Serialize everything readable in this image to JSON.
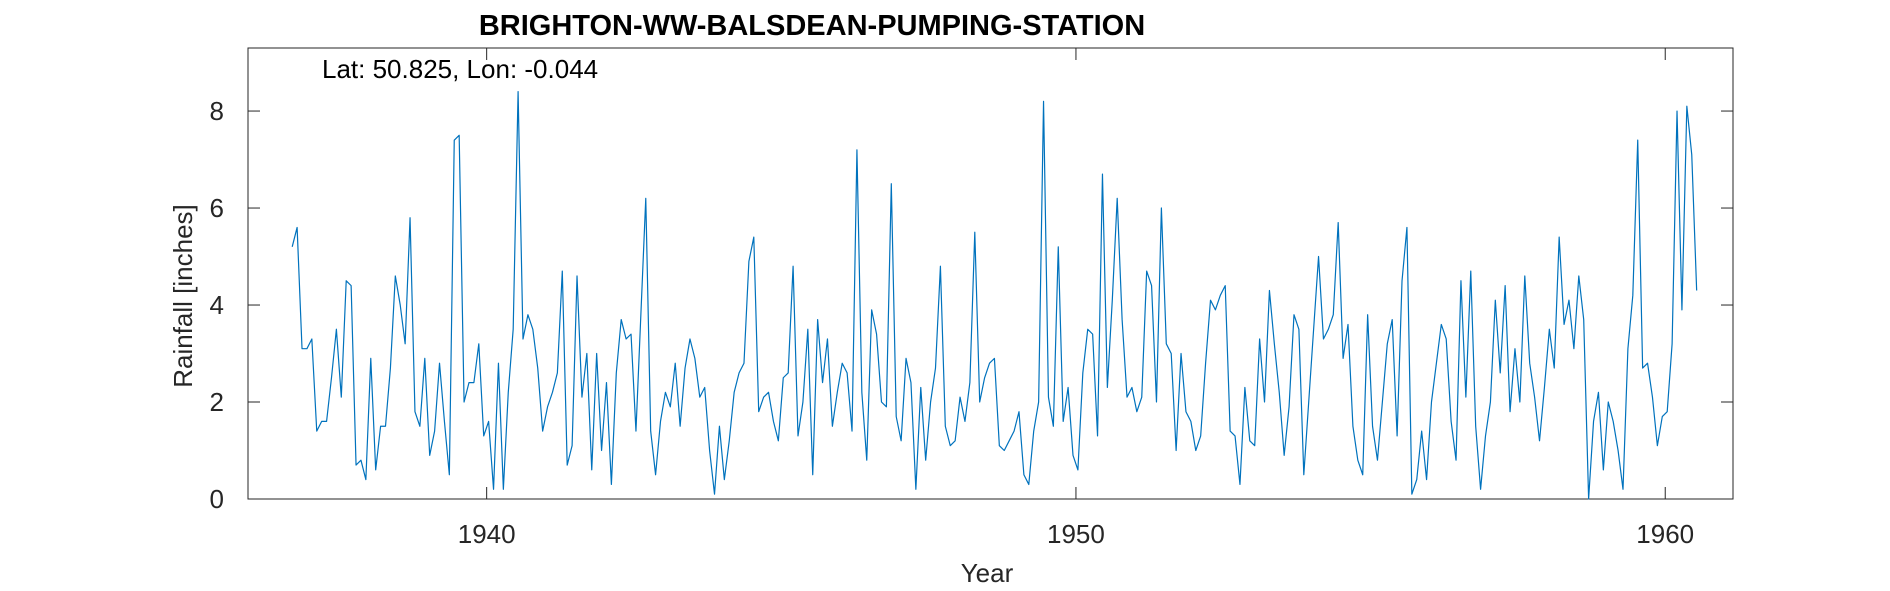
{
  "chart_data": {
    "type": "line",
    "title": "BRIGHTON-WW-BALSDEAN-PUMPING-STATION",
    "annotation": "Lat: 50.825, Lon: -0.044",
    "xlabel": "Year",
    "ylabel": "Rainfall [inches]",
    "xlim": [
      1935.95,
      1961.15
    ],
    "ylim": [
      0,
      9.3
    ],
    "x_ticks": [
      1940,
      1950,
      1960
    ],
    "y_ticks": [
      0,
      2,
      4,
      6,
      8
    ],
    "grid": false,
    "series_color": "#0072BD",
    "series": [
      {
        "x_start": 1936.7,
        "x_step_months": 1,
        "values": [
          5.2,
          5.6,
          3.1,
          3.1,
          3.3,
          1.4,
          1.6,
          1.6,
          2.5,
          3.5,
          2.1,
          4.5,
          4.4,
          0.7,
          0.8,
          0.4,
          2.9,
          0.6,
          1.5,
          1.5,
          2.7,
          4.6,
          4.0,
          3.2,
          5.8,
          1.8,
          1.5,
          2.9,
          0.9,
          1.4,
          2.8,
          1.6,
          0.5,
          7.4,
          7.5,
          2.0,
          2.4,
          2.4,
          3.2,
          1.3,
          1.6,
          0.2,
          2.8,
          0.2,
          2.2,
          3.5,
          8.4,
          3.3,
          3.8,
          3.5,
          2.7,
          1.4,
          1.9,
          2.2,
          2.6,
          4.7,
          0.7,
          1.1,
          4.6,
          2.1,
          3.0,
          0.6,
          3.0,
          1.0,
          2.4,
          0.3,
          2.6,
          3.7,
          3.3,
          3.4,
          1.4,
          3.8,
          6.2,
          1.4,
          0.5,
          1.6,
          2.2,
          1.9,
          2.8,
          1.5,
          2.7,
          3.3,
          2.9,
          2.1,
          2.3,
          1.0,
          0.1,
          1.5,
          0.4,
          1.2,
          2.2,
          2.6,
          2.8,
          4.9,
          5.4,
          1.8,
          2.1,
          2.2,
          1.6,
          1.2,
          2.5,
          2.6,
          4.8,
          1.3,
          2.0,
          3.5,
          0.5,
          3.7,
          2.4,
          3.3,
          1.5,
          2.2,
          2.8,
          2.6,
          1.4,
          7.2,
          2.2,
          0.8,
          3.9,
          3.4,
          2.0,
          1.9,
          6.5,
          1.7,
          1.2,
          2.9,
          2.4,
          0.2,
          2.3,
          0.8,
          2.0,
          2.7,
          4.8,
          1.5,
          1.1,
          1.2,
          2.1,
          1.6,
          2.4,
          5.5,
          2.0,
          2.5,
          2.8,
          2.9,
          1.1,
          1.0,
          1.2,
          1.4,
          1.8,
          0.5,
          0.3,
          1.4,
          2.0,
          8.2,
          2.1,
          1.5,
          5.2,
          1.6,
          2.3,
          0.9,
          0.6,
          2.6,
          3.5,
          3.4,
          1.3,
          6.7,
          2.3,
          4.1,
          6.2,
          3.7,
          2.1,
          2.3,
          1.8,
          2.1,
          4.7,
          4.4,
          2.0,
          6.0,
          3.2,
          3.0,
          1.0,
          3.0,
          1.8,
          1.6,
          1.0,
          1.3,
          2.8,
          4.1,
          3.9,
          4.2,
          4.4,
          1.4,
          1.3,
          0.3,
          2.3,
          1.2,
          1.1,
          3.3,
          2.0,
          4.3,
          3.2,
          2.2,
          0.9,
          1.9,
          3.8,
          3.5,
          0.5,
          2.0,
          3.5,
          5.0,
          3.3,
          3.5,
          3.8,
          5.7,
          2.9,
          3.6,
          1.5,
          0.8,
          0.5,
          3.8,
          1.5,
          0.8,
          2.0,
          3.2,
          3.7,
          1.3,
          4.5,
          5.6,
          0.1,
          0.4,
          1.4,
          0.4,
          2.0,
          2.8,
          3.6,
          3.3,
          1.6,
          0.8,
          4.5,
          2.1,
          4.7,
          1.5,
          0.2,
          1.3,
          2.0,
          4.1,
          2.6,
          4.4,
          1.8,
          3.1,
          2.0,
          4.6,
          2.8,
          2.1,
          1.2,
          2.3,
          3.5,
          2.7,
          5.4,
          3.6,
          4.1,
          3.1,
          4.6,
          3.7,
          0.0,
          1.6,
          2.2,
          0.6,
          2.0,
          1.6,
          1.0,
          0.2,
          3.1,
          4.2,
          7.4,
          2.7,
          2.8,
          2.1,
          1.1,
          1.7,
          1.8,
          3.2,
          8.0,
          3.9,
          8.1,
          7.1,
          4.3
        ]
      }
    ]
  }
}
